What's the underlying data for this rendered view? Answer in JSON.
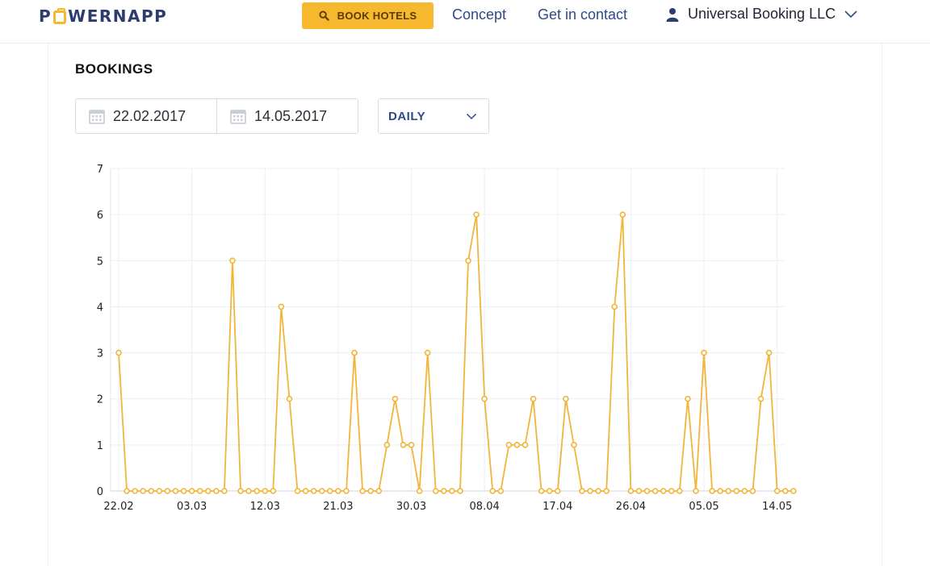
{
  "header": {
    "logo": "POWERNAPP",
    "book_button": "BOOK HOTELS",
    "nav": [
      "Concept",
      "Get in contact"
    ],
    "user": "Universal Booking LLC"
  },
  "section": {
    "title": "BOOKINGS",
    "date_from": "22.02.2017",
    "date_to": "14.05.2017",
    "interval": "DAILY"
  },
  "colors": {
    "accent": "#f5b82e",
    "nav": "#2f4a86",
    "line": "#f0b53a"
  },
  "icons": [
    "search-icon",
    "user-icon",
    "chevron-down-icon",
    "calendar-icon"
  ],
  "chart_data": {
    "type": "line",
    "title": "",
    "xlabel": "",
    "ylabel": "",
    "ylim": [
      0,
      7
    ],
    "yticks": [
      0,
      1,
      2,
      3,
      4,
      5,
      6,
      7
    ],
    "x_tick_labels": [
      "22.02",
      "03.03",
      "12.03",
      "21.03",
      "30.03",
      "08.04",
      "17.04",
      "26.04",
      "05.05",
      "14.05"
    ],
    "start": "22.02.2017",
    "grid": true,
    "series": [
      {
        "values": [
          3,
          0,
          0,
          0,
          0,
          0,
          0,
          0,
          0,
          0,
          0,
          0,
          0,
          0,
          5,
          0,
          0,
          0,
          0,
          0,
          4,
          2,
          0,
          0,
          0,
          0,
          0,
          0,
          0,
          3,
          0,
          0,
          0,
          1,
          2,
          1,
          1,
          0,
          3,
          0,
          0,
          0,
          0,
          5,
          6,
          2,
          0,
          0,
          1,
          1,
          1,
          2,
          0,
          0,
          0,
          2,
          1,
          0,
          0,
          0,
          0,
          4,
          6,
          0,
          0,
          0,
          0,
          0,
          0,
          0,
          2,
          0,
          3,
          0,
          0,
          0,
          0,
          0,
          0,
          2,
          3,
          0,
          0,
          0
        ]
      }
    ]
  }
}
